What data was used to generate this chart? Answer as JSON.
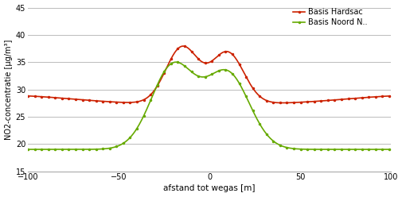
{
  "title": "",
  "xlabel": "afstand tot wegas [m]",
  "ylabel": "NO2-concentratie [µg/m³]",
  "xlim": [
    -100,
    100
  ],
  "ylim": [
    15,
    45
  ],
  "yticks": [
    15,
    20,
    25,
    30,
    35,
    40,
    45
  ],
  "xticks": [
    -100,
    -50,
    0,
    50,
    100
  ],
  "legend": [
    "Basis Hardsac",
    "Basis Noord N.."
  ],
  "red_color": "#cc2200",
  "green_color": "#66aa00",
  "background_color": "#ffffff",
  "grid_color": "#bbbbbb",
  "red_base": 27.3,
  "red_p1_amp": 10.4,
  "red_p1_mu": -15,
  "red_p1_sig": 9,
  "red_p2_amp": 9.4,
  "red_p2_mu": 10,
  "red_p2_sig": 9,
  "green_base": 19.0,
  "green_p1_amp": 15.3,
  "green_p1_mu": -20,
  "green_p1_sig": 12,
  "green_p2_amp": 13.8,
  "green_p2_mu": 10,
  "green_p2_sig": 12
}
